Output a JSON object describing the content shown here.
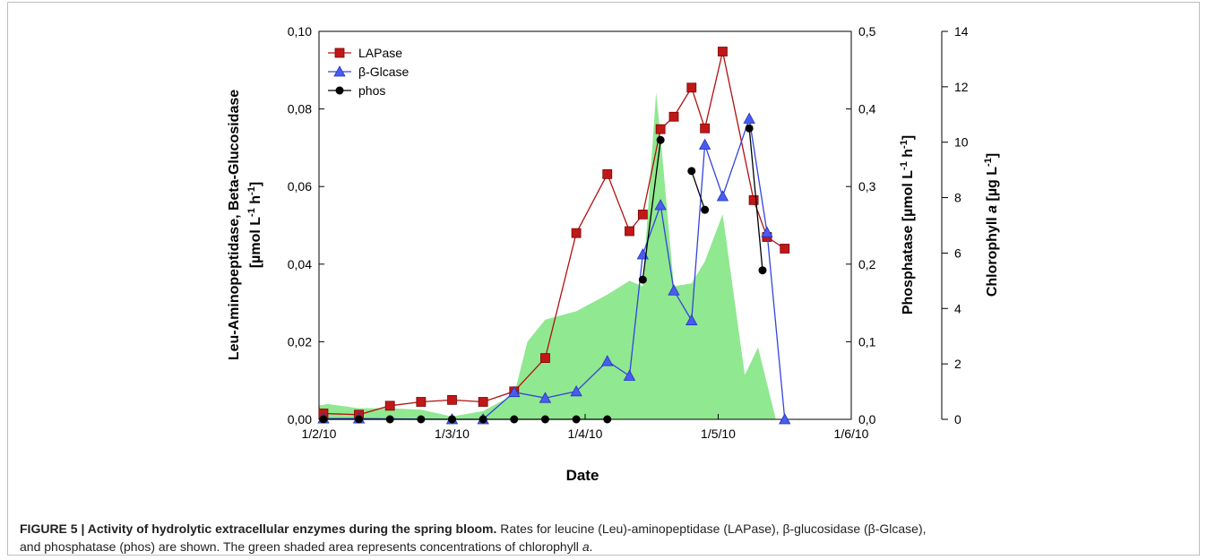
{
  "caption": {
    "label": "FIGURE 5 | Activity of hydrolytic extracellular enzymes during the spring bloom.",
    "text1": " Rates for leucine (Leu)-aminopeptidase (LAPase), β-glucosidase (β-Glcase),",
    "text2a": "and phosphatase (phos) are shown. The green shaded area represents concentrations of chlorophyll ",
    "text2b": "a",
    "text2c": "."
  },
  "chart_data": {
    "type": "line",
    "xlabel": "Date",
    "x_ticks": [
      "1/2/10",
      "1/3/10",
      "1/4/10",
      "1/5/10",
      "1/6/10"
    ],
    "x_range": [
      "2010-02-01",
      "2010-06-01"
    ],
    "y_left": {
      "label_line1": "Leu-Aminopeptidase, Beta-Glucosidase",
      "label_line2": "[µmol L",
      "sup1": "-1",
      "mid": " h",
      "sup2": "-1",
      "end": "]",
      "range": [
        0,
        0.1
      ],
      "ticks": [
        "0,00",
        "0,02",
        "0,04",
        "0,06",
        "0,08",
        "0,10"
      ]
    },
    "y_right1": {
      "label": "Phosphatase [µmol L",
      "sup1": "-1",
      "mid": " h",
      "sup2": "-1",
      "end": "]",
      "range": [
        0,
        0.5
      ],
      "ticks": [
        "0,0",
        "0,1",
        "0,2",
        "0,3",
        "0,4",
        "0,5"
      ]
    },
    "y_right2": {
      "label_pre": "Chlorophyll ",
      "label_it": "a",
      "label_post": " [µg L",
      "sup": "-1",
      "end": "]",
      "range": [
        0,
        14
      ],
      "ticks": [
        "0",
        "2",
        "4",
        "6",
        "8",
        "10",
        "12",
        "14"
      ]
    },
    "legend": {
      "position": "top-left",
      "items": [
        "LAPase",
        "β-Glcase",
        "phos"
      ]
    },
    "series": [
      {
        "name": "LAPase",
        "axis": "left",
        "color": "#b01010",
        "marker": "square",
        "points": [
          [
            "2010-02-02",
            0.0015
          ],
          [
            "2010-02-10",
            0.0012
          ],
          [
            "2010-02-17",
            0.0035
          ],
          [
            "2010-02-24",
            0.0045
          ],
          [
            "2010-03-03",
            0.005
          ],
          [
            "2010-03-10",
            0.0045
          ],
          [
            "2010-03-17",
            0.0072
          ],
          [
            "2010-03-24",
            0.0158
          ],
          [
            "2010-03-31",
            0.048
          ],
          [
            "2010-04-07",
            0.0632
          ],
          [
            "2010-04-12",
            0.0485
          ],
          [
            "2010-04-15",
            0.0528
          ],
          [
            "2010-04-19",
            0.0748
          ],
          [
            "2010-04-22",
            0.078
          ],
          [
            "2010-04-26",
            0.0855
          ],
          [
            "2010-04-29",
            0.075
          ],
          [
            "2010-05-03",
            0.0948
          ],
          [
            "2010-05-10",
            0.0565
          ],
          [
            "2010-05-13",
            0.047
          ],
          [
            "2010-05-17",
            0.044
          ]
        ]
      },
      {
        "name": "β-Glcase",
        "axis": "left",
        "color": "#3344dd",
        "marker": "triangle",
        "points": [
          [
            "2010-02-02",
            0.0002
          ],
          [
            "2010-02-10",
            0.0002
          ],
          [
            "2010-03-03",
            0.0
          ],
          [
            "2010-03-10",
            0.0
          ],
          [
            "2010-03-17",
            0.007
          ],
          [
            "2010-03-24",
            0.0055
          ],
          [
            "2010-03-31",
            0.0072
          ],
          [
            "2010-04-07",
            0.015
          ],
          [
            "2010-04-12",
            0.0112
          ],
          [
            "2010-04-15",
            0.0425
          ],
          [
            "2010-04-19",
            0.0552
          ],
          [
            "2010-04-22",
            0.0332
          ],
          [
            "2010-04-26",
            0.0255
          ],
          [
            "2010-04-29",
            0.0708
          ],
          [
            "2010-05-03",
            0.0575
          ],
          [
            "2010-05-09",
            0.0775
          ],
          [
            "2010-05-13",
            0.0482
          ],
          [
            "2010-05-17",
            0.0
          ]
        ]
      },
      {
        "name": "phos",
        "axis": "right1",
        "color": "#000000",
        "marker": "circle",
        "segments": [
          [
            [
              "2010-02-02",
              0.0
            ],
            [
              "2010-02-10",
              0.0
            ],
            [
              "2010-02-17",
              0.0
            ],
            [
              "2010-02-24",
              0.0
            ],
            [
              "2010-03-03",
              0.0
            ],
            [
              "2010-03-10",
              0.0
            ],
            [
              "2010-03-17",
              0.0
            ],
            [
              "2010-03-24",
              0.0
            ],
            [
              "2010-03-31",
              0.0
            ],
            [
              "2010-04-07",
              0.0
            ]
          ],
          [
            [
              "2010-04-15",
              0.18
            ],
            [
              "2010-04-19",
              0.36
            ]
          ],
          [
            [
              "2010-04-26",
              0.32
            ],
            [
              "2010-04-29",
              0.27
            ]
          ],
          [
            [
              "2010-05-09",
              0.375
            ],
            [
              "2010-05-12",
              0.192
            ]
          ]
        ]
      }
    ],
    "area": {
      "name": "Chlorophyll a",
      "axis": "right2",
      "color": "#90e890",
      "points": [
        [
          "2010-02-01",
          0.0
        ],
        [
          "2010-02-01",
          0.5
        ],
        [
          "2010-02-03",
          0.55
        ],
        [
          "2010-02-10",
          0.4
        ],
        [
          "2010-02-17",
          0.4
        ],
        [
          "2010-02-24",
          0.35
        ],
        [
          "2010-03-03",
          0.1
        ],
        [
          "2010-03-10",
          0.3
        ],
        [
          "2010-03-17",
          0.9
        ],
        [
          "2010-03-20",
          2.8
        ],
        [
          "2010-03-24",
          3.6
        ],
        [
          "2010-03-31",
          3.9
        ],
        [
          "2010-04-07",
          4.5
        ],
        [
          "2010-04-12",
          5.0
        ],
        [
          "2010-04-15",
          4.8
        ],
        [
          "2010-04-18",
          11.8
        ],
        [
          "2010-04-19",
          10.2
        ],
        [
          "2010-04-22",
          4.8
        ],
        [
          "2010-04-26",
          4.9
        ],
        [
          "2010-04-29",
          5.7
        ],
        [
          "2010-05-03",
          7.4
        ],
        [
          "2010-05-08",
          1.6
        ],
        [
          "2010-05-11",
          2.6
        ],
        [
          "2010-05-15",
          0.0
        ]
      ]
    }
  }
}
